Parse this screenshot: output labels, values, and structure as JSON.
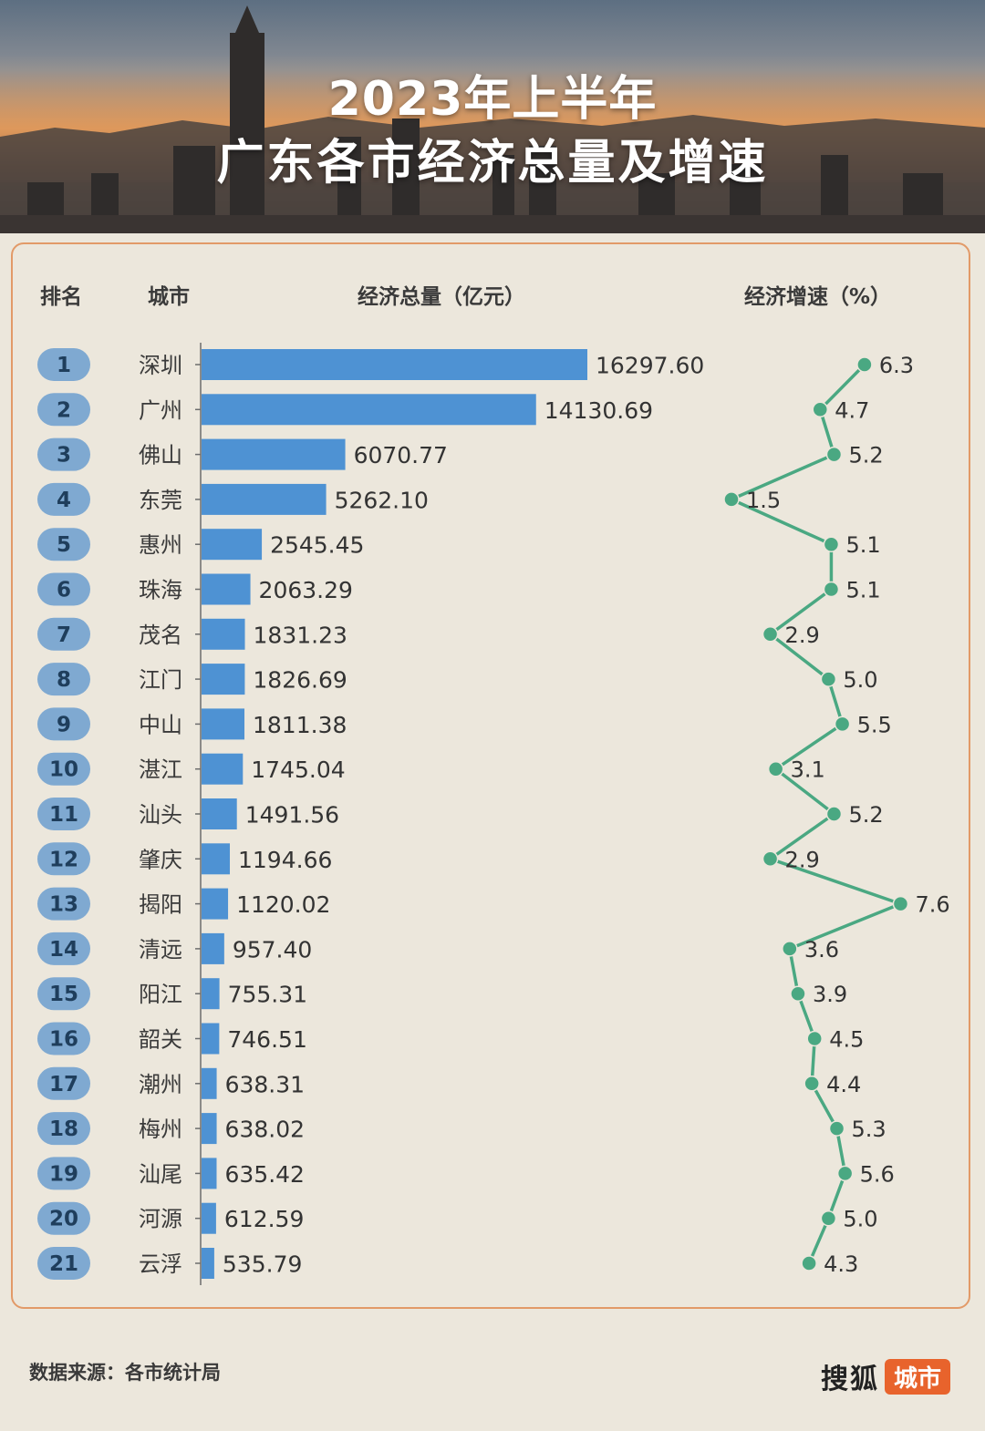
{
  "header": {
    "title_line1": "2023年上半年",
    "title_line2": "广东各市经济总量及增速"
  },
  "columns": {
    "rank": "排名",
    "city": "城市",
    "gdp": "经济总量（亿元）",
    "growth": "经济增速（%）"
  },
  "footer": {
    "source": "数据来源：各市统计局",
    "brand_name": "搜狐",
    "brand_tag": "城市"
  },
  "colors": {
    "bar": "#4e92d3",
    "line": "#4aa882",
    "rank_badge": "#7fa9d1",
    "panel_border": "#e29a68",
    "background": "#ece7dc"
  },
  "chart_data": [
    {
      "type": "bar",
      "orientation": "horizontal",
      "title": "经济总量（亿元）",
      "ranks": [
        "1",
        "2",
        "3",
        "4",
        "5",
        "6",
        "7",
        "8",
        "9",
        "10",
        "11",
        "12",
        "13",
        "14",
        "15",
        "16",
        "17",
        "18",
        "19",
        "20",
        "21"
      ],
      "categories": [
        "深圳",
        "广州",
        "佛山",
        "东莞",
        "惠州",
        "珠海",
        "茂名",
        "江门",
        "中山",
        "湛江",
        "汕头",
        "肇庆",
        "揭阳",
        "清远",
        "阳江",
        "韶关",
        "潮州",
        "梅州",
        "汕尾",
        "河源",
        "云浮"
      ],
      "values": [
        16297.6,
        14130.69,
        6070.77,
        5262.1,
        2545.45,
        2063.29,
        1831.23,
        1826.69,
        1811.38,
        1745.04,
        1491.56,
        1194.66,
        1120.02,
        957.4,
        755.31,
        746.51,
        638.31,
        638.02,
        635.42,
        612.59,
        535.79
      ],
      "value_labels": [
        "16297.60",
        "14130.69",
        "6070.77",
        "5262.10",
        "2545.45",
        "2063.29",
        "1831.23",
        "1826.69",
        "1811.38",
        "1745.04",
        "1491.56",
        "1194.66",
        "1120.02",
        "957.40",
        "755.31",
        "746.51",
        "638.31",
        "638.02",
        "635.42",
        "612.59",
        "535.79"
      ]
    },
    {
      "type": "line",
      "title": "经济增速（%）",
      "categories": [
        "深圳",
        "广州",
        "佛山",
        "东莞",
        "惠州",
        "珠海",
        "茂名",
        "江门",
        "中山",
        "湛江",
        "汕头",
        "肇庆",
        "揭阳",
        "清远",
        "阳江",
        "韶关",
        "潮州",
        "梅州",
        "汕尾",
        "河源",
        "云浮"
      ],
      "values": [
        6.3,
        4.7,
        5.2,
        1.5,
        5.1,
        5.1,
        2.9,
        5.0,
        5.5,
        3.1,
        5.2,
        2.9,
        7.6,
        3.6,
        3.9,
        4.5,
        4.4,
        5.3,
        5.6,
        5.0,
        4.3
      ],
      "value_labels": [
        "6.3",
        "4.7",
        "5.2",
        "1.5",
        "5.1",
        "5.1",
        "2.9",
        "5.0",
        "5.5",
        "3.1",
        "5.2",
        "2.9",
        "7.6",
        "3.6",
        "3.9",
        "4.5",
        "4.4",
        "5.3",
        "5.6",
        "5.0",
        "4.3"
      ]
    }
  ]
}
